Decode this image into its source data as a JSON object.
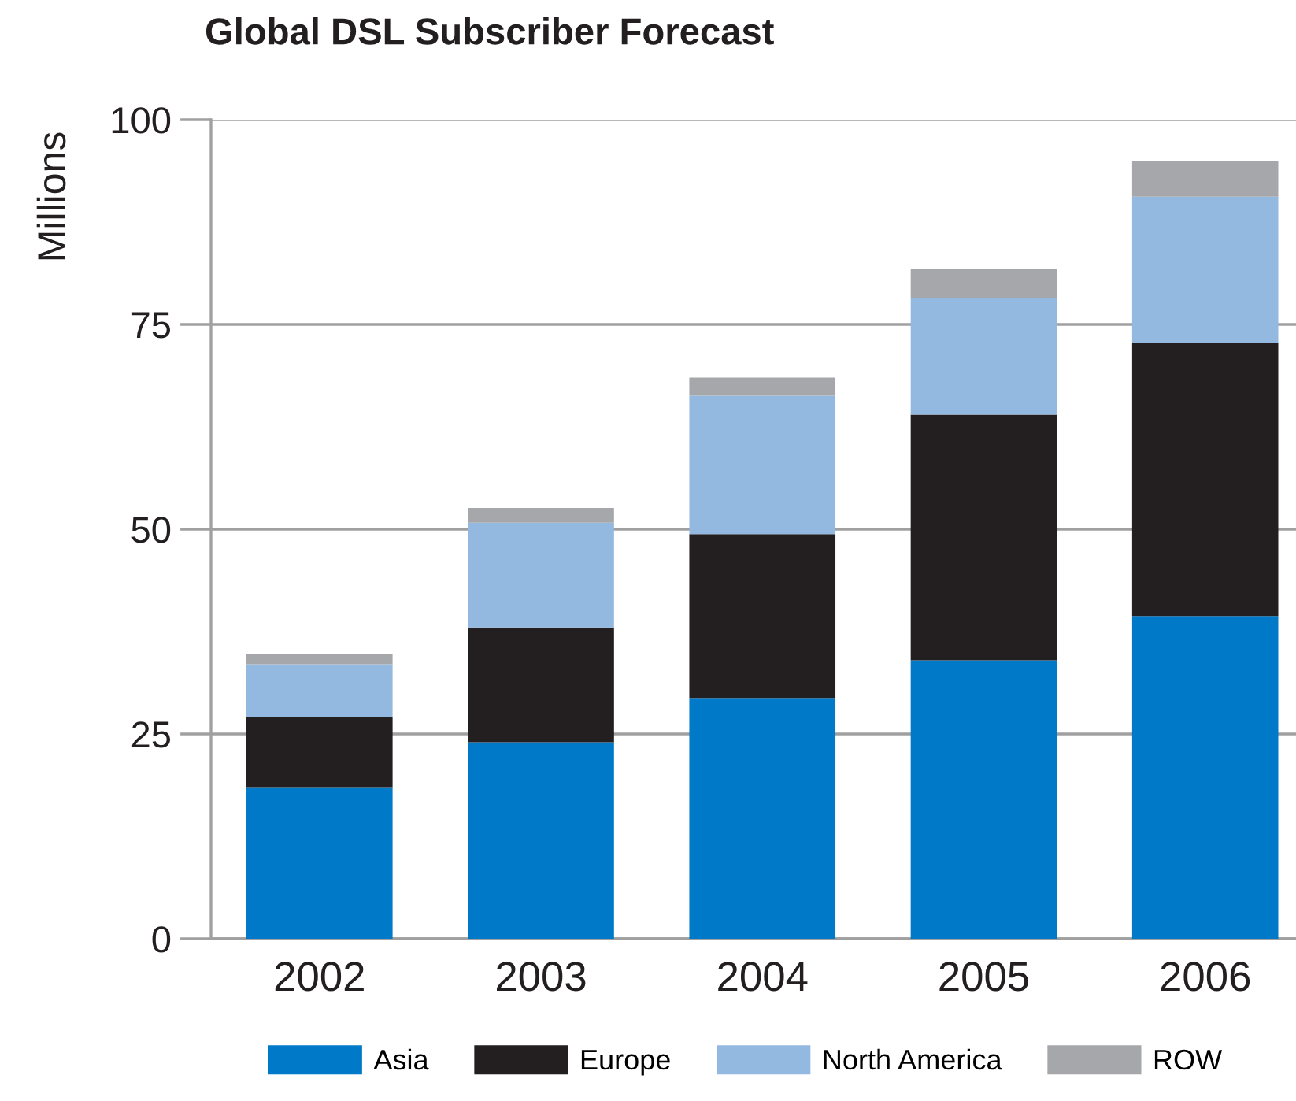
{
  "chart_data": {
    "type": "bar",
    "title": "Global DSL Subscriber Forecast",
    "ylabel": "Millions",
    "stacked": true,
    "categories": [
      "2002",
      "2003",
      "2004",
      "2005",
      "2006"
    ],
    "series": [
      {
        "name": "Asia",
        "color": "#007ac8",
        "values": [
          18.5,
          24.0,
          29.4,
          34.0,
          39.4
        ]
      },
      {
        "name": "Europe",
        "color": "#231f20",
        "values": [
          8.6,
          14.0,
          20.0,
          30.0,
          33.4
        ]
      },
      {
        "name": "North America",
        "color": "#93b9e0",
        "values": [
          6.4,
          12.8,
          16.9,
          14.2,
          17.8
        ]
      },
      {
        "name": "ROW",
        "color": "#a6a7ab",
        "values": [
          1.3,
          1.8,
          2.2,
          3.6,
          4.4
        ]
      }
    ],
    "ylim": [
      0,
      100
    ],
    "yticks": [
      0,
      25,
      50,
      75,
      100
    ],
    "grid": "y",
    "legend": "bottom"
  }
}
